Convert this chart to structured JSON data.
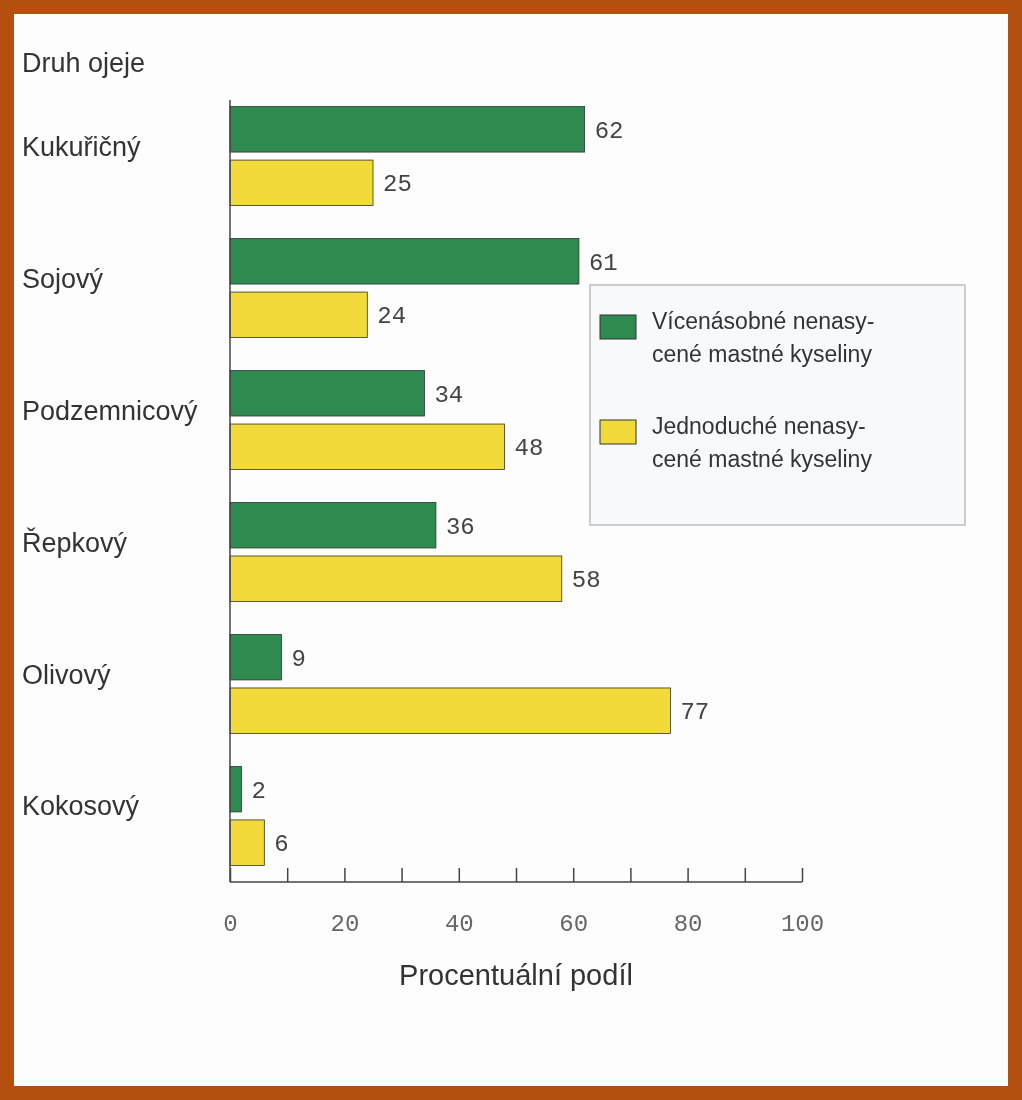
{
  "chart_data": {
    "type": "bar",
    "orientation": "horizontal",
    "ylabel": "Druh ojeje",
    "xlabel": "Procentuální podíl",
    "categories": [
      "Kukuřičný",
      "Sojový",
      "Podzemnicový",
      "Řepkový",
      "Olivový",
      "Kokosový"
    ],
    "series": [
      {
        "name": "Vícenásobné nenasy-cené mastné kyseliny",
        "color": "#2e8a4e",
        "values": [
          62,
          61,
          34,
          36,
          9,
          2
        ]
      },
      {
        "name": "Jednoduché nenasy-cené mastné kyseliny",
        "color": "#f2da3a",
        "values": [
          25,
          24,
          48,
          58,
          77,
          6
        ]
      }
    ],
    "xlim": [
      0,
      100
    ],
    "xticks": [
      0,
      {
        "value": 10,
        "label": null
      },
      20,
      {
        "value": 30,
        "label": null
      },
      40,
      {
        "value": 50,
        "label": null
      },
      60,
      {
        "value": 70,
        "label": null
      },
      80,
      {
        "value": 90,
        "label": null
      },
      100
    ],
    "data_labels": true,
    "legend": "right",
    "grid": false
  }
}
